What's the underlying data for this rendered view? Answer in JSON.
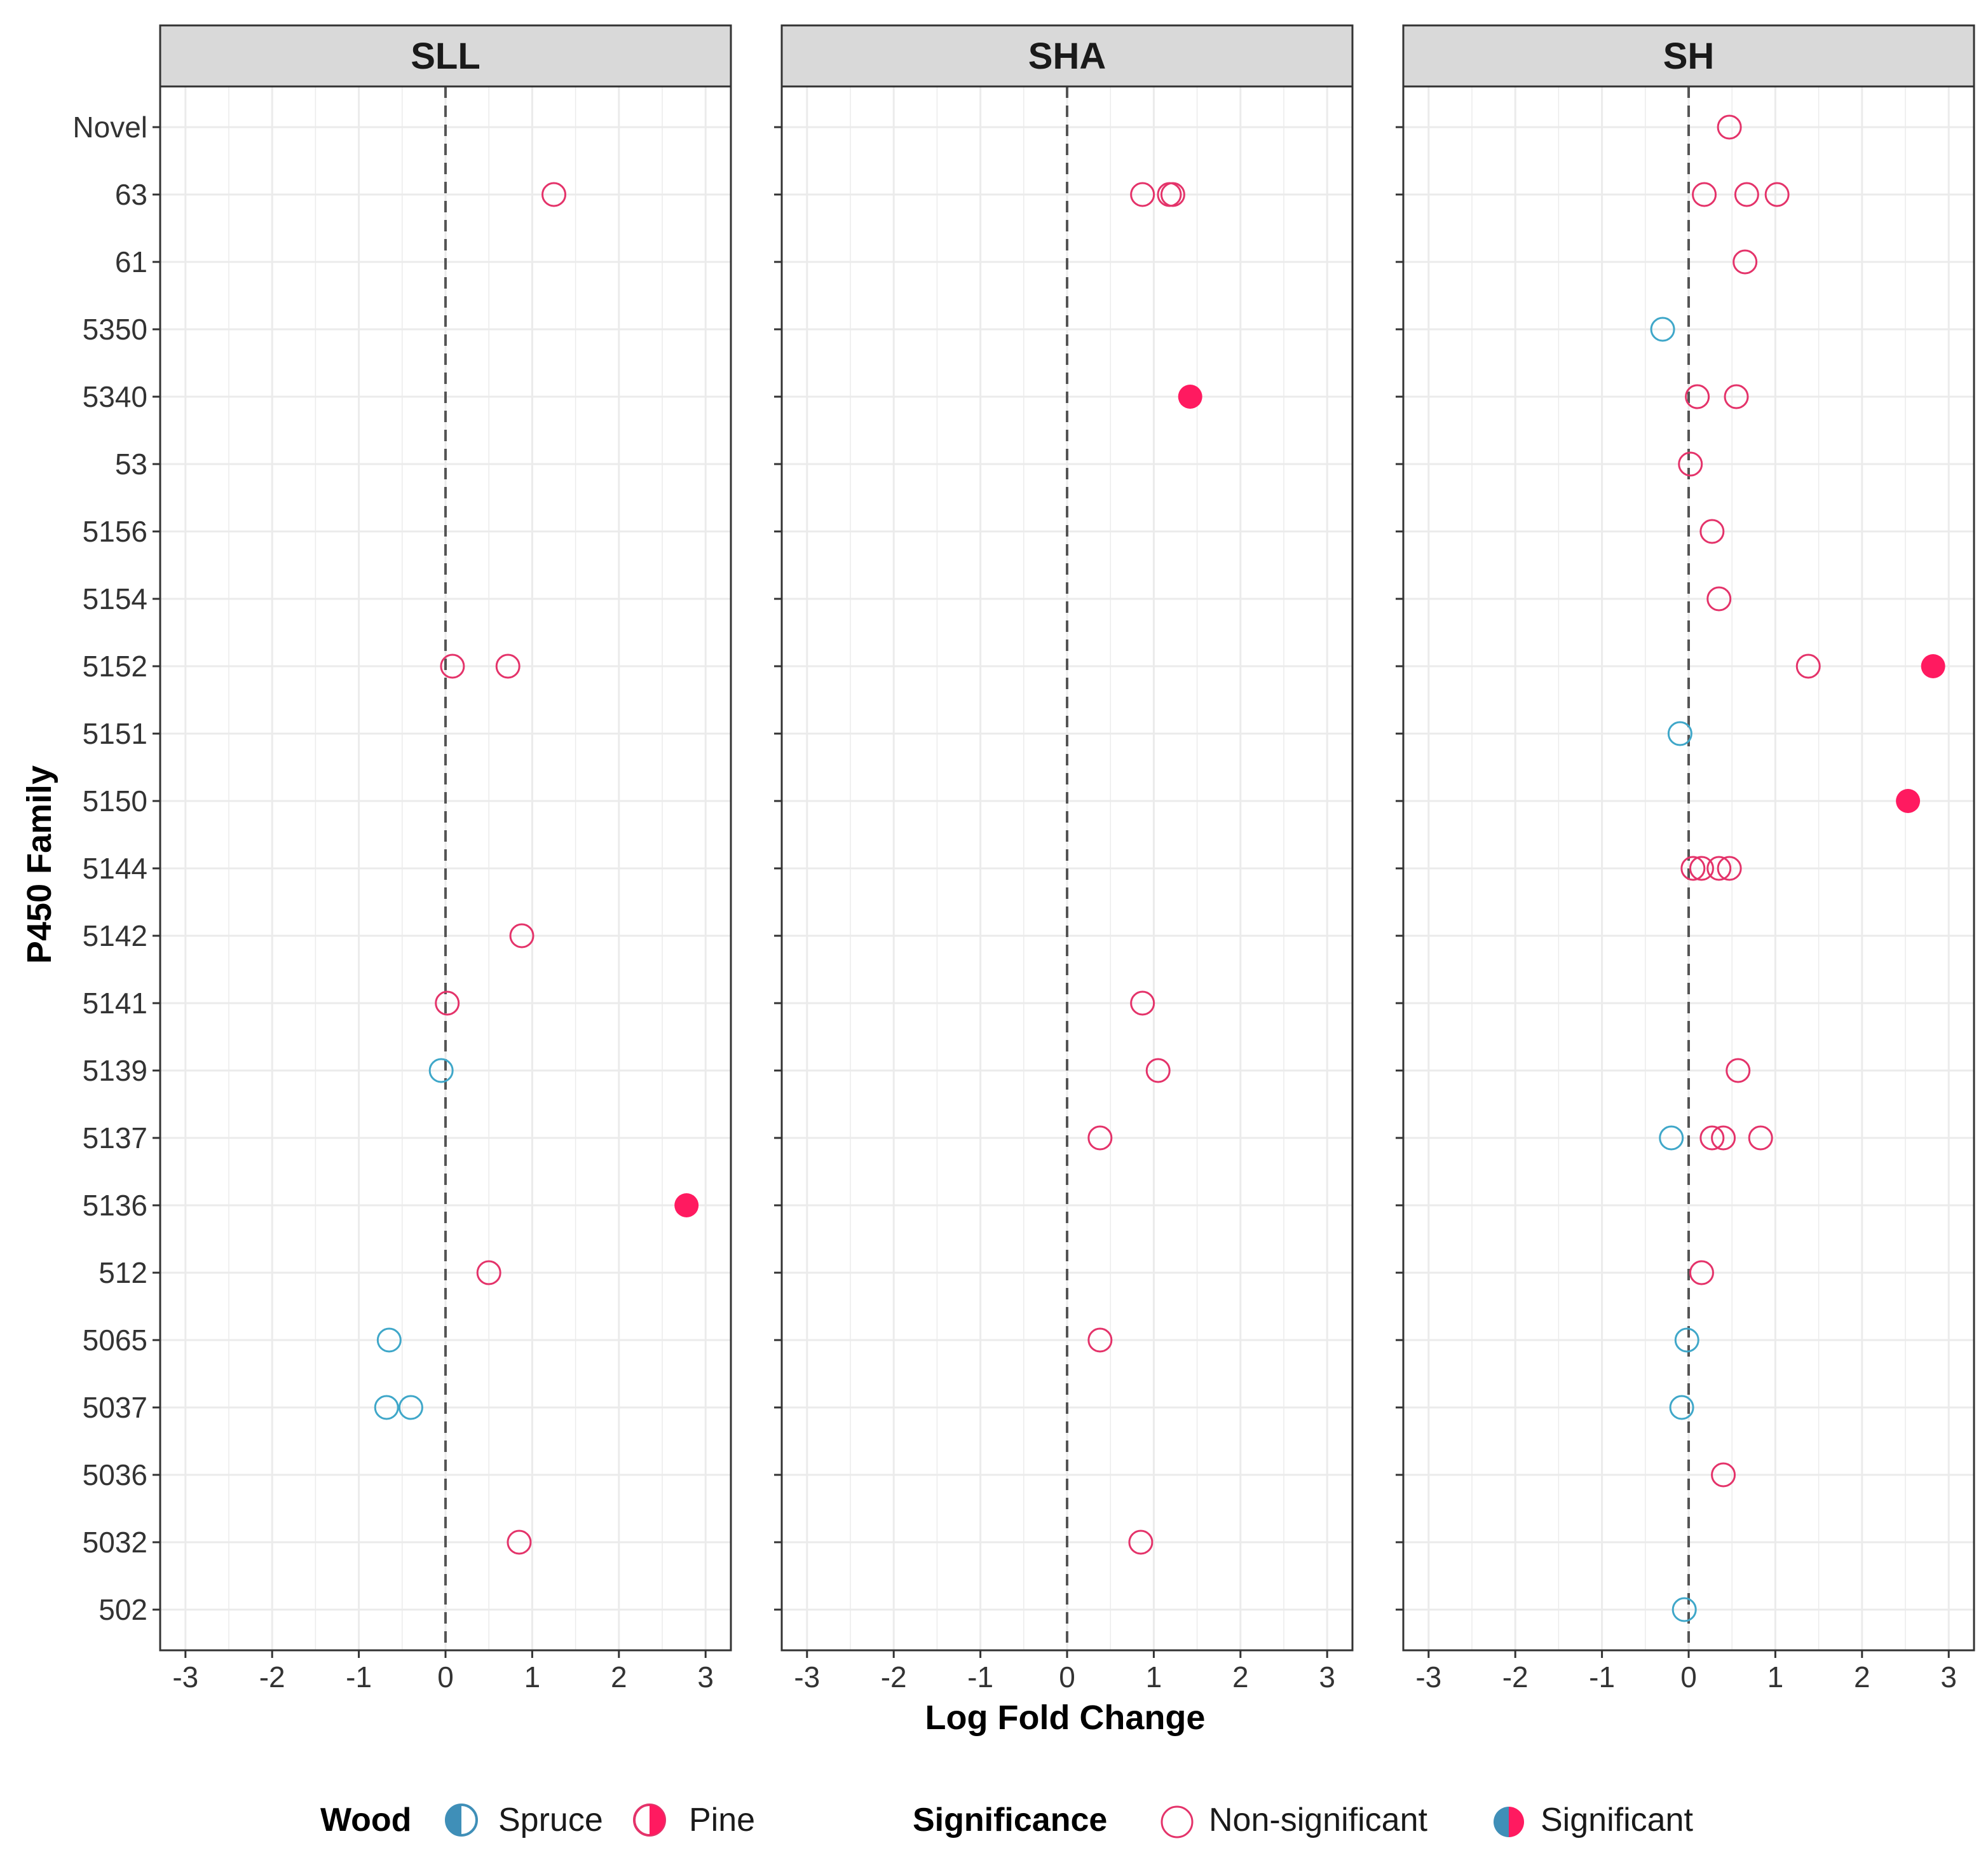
{
  "chart_data": {
    "type": "scatter",
    "facets": [
      "SLL",
      "SHA",
      "SH"
    ],
    "xlabel": "Log Fold Change",
    "ylabel": "P450 Family",
    "xlim": [
      -3.3,
      3.3
    ],
    "xticks": [
      -3,
      -2,
      -1,
      0,
      1,
      2,
      3
    ],
    "reference_line": {
      "x": 0,
      "style": "dashed"
    },
    "grid": true,
    "categories": [
      "Novel",
      "63",
      "61",
      "5350",
      "5340",
      "53",
      "5156",
      "5154",
      "5152",
      "5151",
      "5150",
      "5144",
      "5142",
      "5141",
      "5139",
      "5137",
      "5136",
      "512",
      "5065",
      "5037",
      "5036",
      "5032",
      "502"
    ],
    "colors": {
      "Spruce": "#3fa7c9",
      "Pine": "#e4336a",
      "Significant": "#ff1a60"
    },
    "points": {
      "SLL": [
        {
          "family": "63",
          "lfc": 1.25,
          "wood": "Pine",
          "sig": false
        },
        {
          "family": "5152",
          "lfc": 0.08,
          "wood": "Pine",
          "sig": false
        },
        {
          "family": "5152",
          "lfc": 0.72,
          "wood": "Pine",
          "sig": false
        },
        {
          "family": "5142",
          "lfc": 0.88,
          "wood": "Pine",
          "sig": false
        },
        {
          "family": "5141",
          "lfc": 0.02,
          "wood": "Pine",
          "sig": false
        },
        {
          "family": "5139",
          "lfc": -0.05,
          "wood": "Spruce",
          "sig": false
        },
        {
          "family": "5136",
          "lfc": 2.78,
          "wood": "Pine",
          "sig": true
        },
        {
          "family": "512",
          "lfc": 0.5,
          "wood": "Pine",
          "sig": false
        },
        {
          "family": "5065",
          "lfc": -0.65,
          "wood": "Spruce",
          "sig": false
        },
        {
          "family": "5037",
          "lfc": -0.68,
          "wood": "Spruce",
          "sig": false
        },
        {
          "family": "5037",
          "lfc": -0.4,
          "wood": "Spruce",
          "sig": false
        },
        {
          "family": "5032",
          "lfc": 0.85,
          "wood": "Pine",
          "sig": false
        }
      ],
      "SHA": [
        {
          "family": "63",
          "lfc": 0.87,
          "wood": "Pine",
          "sig": false
        },
        {
          "family": "63",
          "lfc": 1.18,
          "wood": "Pine",
          "sig": false
        },
        {
          "family": "63",
          "lfc": 1.22,
          "wood": "Pine",
          "sig": false
        },
        {
          "family": "5340",
          "lfc": 1.42,
          "wood": "Pine",
          "sig": true
        },
        {
          "family": "5141",
          "lfc": 0.87,
          "wood": "Pine",
          "sig": false
        },
        {
          "family": "5139",
          "lfc": 1.05,
          "wood": "Pine",
          "sig": false
        },
        {
          "family": "5137",
          "lfc": 0.38,
          "wood": "Pine",
          "sig": false
        },
        {
          "family": "5065",
          "lfc": 0.38,
          "wood": "Pine",
          "sig": false
        },
        {
          "family": "5032",
          "lfc": 0.85,
          "wood": "Pine",
          "sig": false
        }
      ],
      "SH": [
        {
          "family": "Novel",
          "lfc": 0.47,
          "wood": "Pine",
          "sig": false
        },
        {
          "family": "63",
          "lfc": 0.18,
          "wood": "Pine",
          "sig": false
        },
        {
          "family": "63",
          "lfc": 0.67,
          "wood": "Pine",
          "sig": false
        },
        {
          "family": "63",
          "lfc": 1.02,
          "wood": "Pine",
          "sig": false
        },
        {
          "family": "61",
          "lfc": 0.65,
          "wood": "Pine",
          "sig": false
        },
        {
          "family": "5350",
          "lfc": -0.3,
          "wood": "Spruce",
          "sig": false
        },
        {
          "family": "5340",
          "lfc": 0.1,
          "wood": "Pine",
          "sig": false
        },
        {
          "family": "5340",
          "lfc": 0.55,
          "wood": "Pine",
          "sig": false
        },
        {
          "family": "53",
          "lfc": 0.02,
          "wood": "Pine",
          "sig": false
        },
        {
          "family": "5156",
          "lfc": 0.27,
          "wood": "Pine",
          "sig": false
        },
        {
          "family": "5154",
          "lfc": 0.35,
          "wood": "Pine",
          "sig": false
        },
        {
          "family": "5152",
          "lfc": 1.38,
          "wood": "Pine",
          "sig": false
        },
        {
          "family": "5152",
          "lfc": 2.82,
          "wood": "Pine",
          "sig": true
        },
        {
          "family": "5151",
          "lfc": -0.1,
          "wood": "Spruce",
          "sig": false
        },
        {
          "family": "5150",
          "lfc": 2.53,
          "wood": "Pine",
          "sig": true
        },
        {
          "family": "5144",
          "lfc": 0.05,
          "wood": "Pine",
          "sig": false
        },
        {
          "family": "5144",
          "lfc": 0.15,
          "wood": "Pine",
          "sig": false
        },
        {
          "family": "5144",
          "lfc": 0.35,
          "wood": "Pine",
          "sig": false
        },
        {
          "family": "5144",
          "lfc": 0.47,
          "wood": "Pine",
          "sig": false
        },
        {
          "family": "5139",
          "lfc": 0.57,
          "wood": "Pine",
          "sig": false
        },
        {
          "family": "5137",
          "lfc": -0.2,
          "wood": "Spruce",
          "sig": false
        },
        {
          "family": "5137",
          "lfc": 0.27,
          "wood": "Pine",
          "sig": false
        },
        {
          "family": "5137",
          "lfc": 0.4,
          "wood": "Pine",
          "sig": false
        },
        {
          "family": "5137",
          "lfc": 0.83,
          "wood": "Pine",
          "sig": false
        },
        {
          "family": "512",
          "lfc": 0.15,
          "wood": "Pine",
          "sig": false
        },
        {
          "family": "5065",
          "lfc": -0.02,
          "wood": "Spruce",
          "sig": false
        },
        {
          "family": "5037",
          "lfc": -0.08,
          "wood": "Spruce",
          "sig": false
        },
        {
          "family": "5036",
          "lfc": 0.4,
          "wood": "Pine",
          "sig": false
        },
        {
          "family": "502",
          "lfc": -0.05,
          "wood": "Spruce",
          "sig": false
        }
      ]
    },
    "legend": {
      "wood_title": "Wood",
      "wood_items": [
        "Spruce",
        "Pine"
      ],
      "significance_title": "Significance",
      "significance_items": [
        "Non-significant",
        "Significant"
      ],
      "placement": "bottom"
    }
  }
}
